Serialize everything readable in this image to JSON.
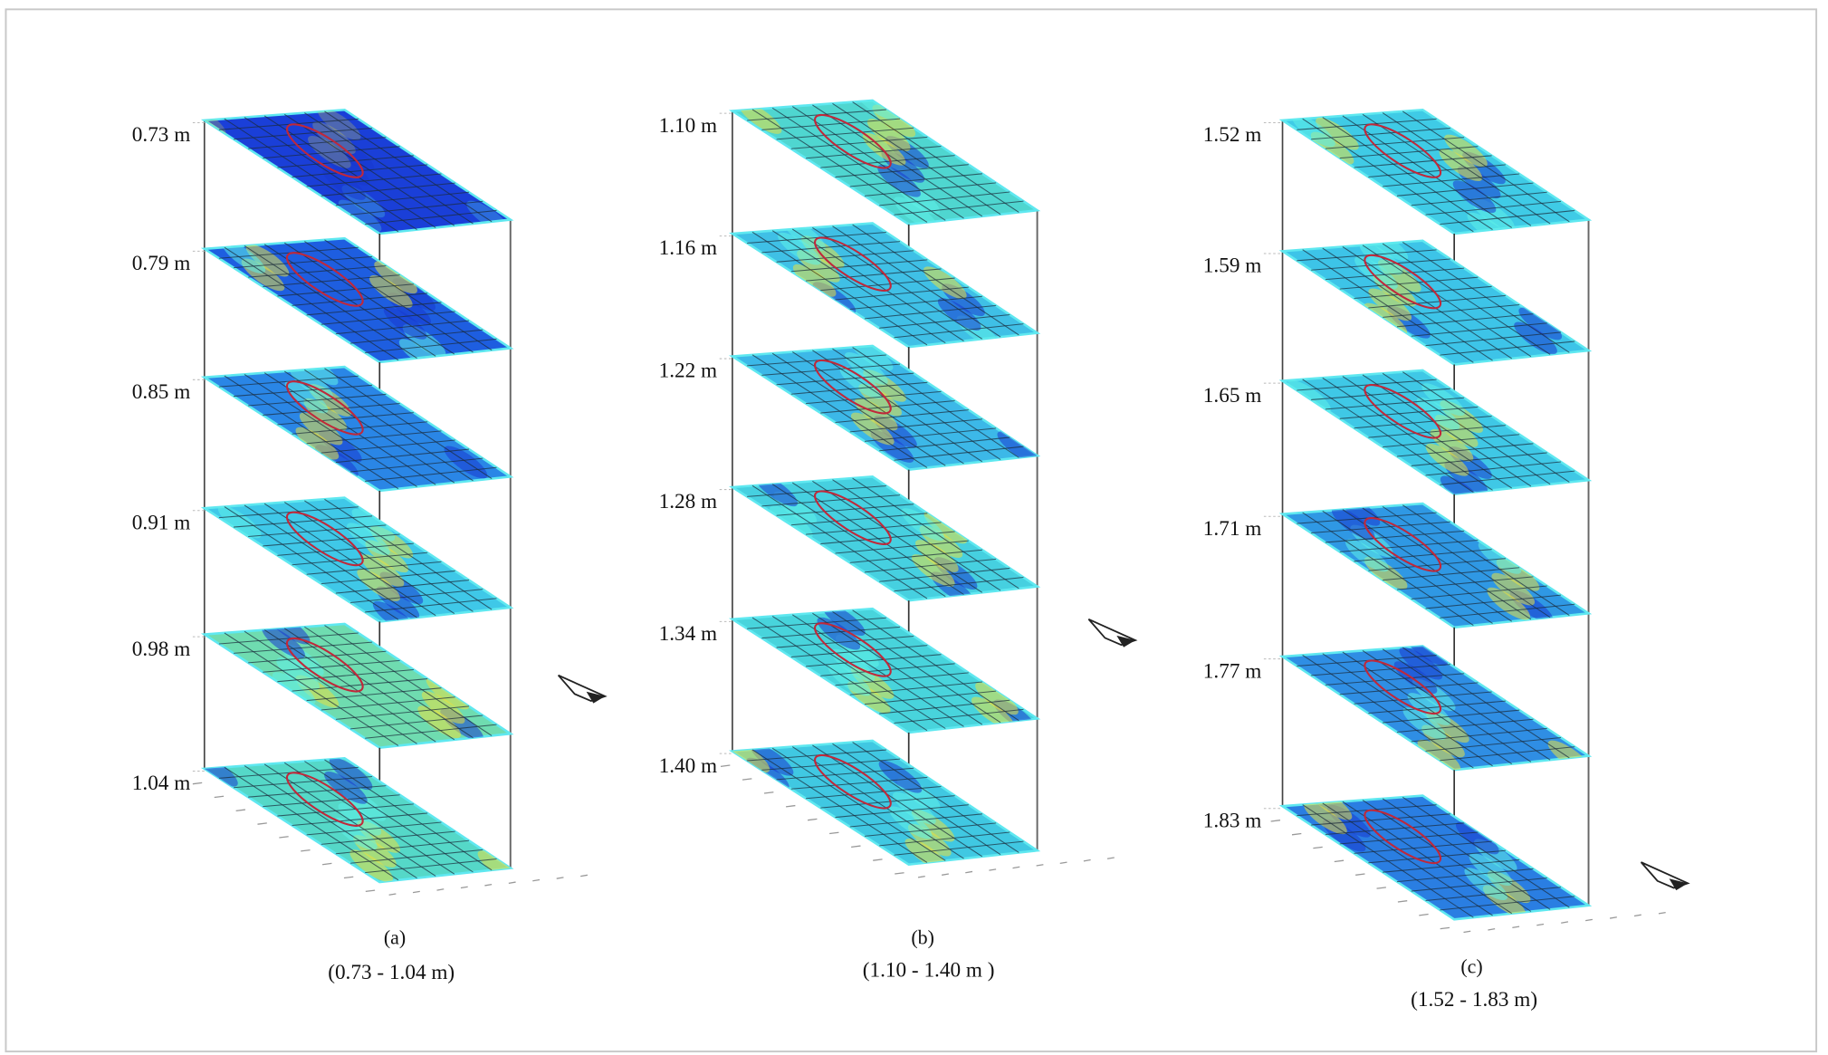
{
  "figure": {
    "panels": [
      {
        "id": "a",
        "caption_letter": "(a)",
        "caption_range": "(0.73 - 1.04 m)",
        "slices": [
          {
            "label": "0.73 m",
            "tone": "#1a3fd8"
          },
          {
            "label": "0.79 m",
            "tone": "#1e5ee0"
          },
          {
            "label": "0.85 m",
            "tone": "#2a86e6"
          },
          {
            "label": "0.91 m",
            "tone": "#3fc8e8"
          },
          {
            "label": "0.98 m",
            "tone": "#6fdcb0"
          },
          {
            "label": "1.04 m",
            "tone": "#55d8c8"
          }
        ]
      },
      {
        "id": "b",
        "caption_letter": "(b)",
        "caption_range": "(1.10 - 1.40 m )",
        "slices": [
          {
            "label": "1.10 m",
            "tone": "#4fd6d0"
          },
          {
            "label": "1.16 m",
            "tone": "#3fc0e6"
          },
          {
            "label": "1.22 m",
            "tone": "#3cb8e8"
          },
          {
            "label": "1.28 m",
            "tone": "#46d0e0"
          },
          {
            "label": "1.34 m",
            "tone": "#48d4dc"
          },
          {
            "label": "1.40 m",
            "tone": "#40c8e2"
          }
        ]
      },
      {
        "id": "c",
        "caption_letter": "(c)",
        "caption_range": "(1.52 - 1.83 m)",
        "slices": [
          {
            "label": "1.52 m",
            "tone": "#3fcbe6"
          },
          {
            "label": "1.59 m",
            "tone": "#3dc4e8"
          },
          {
            "label": "1.65 m",
            "tone": "#3fc8e6"
          },
          {
            "label": "1.71 m",
            "tone": "#2f98e4"
          },
          {
            "label": "1.77 m",
            "tone": "#2f8ee4"
          },
          {
            "label": "1.83 m",
            "tone": "#2a7ee2"
          }
        ]
      }
    ],
    "colors": {
      "contour": "#c0283a",
      "grid": "#1a2a3a",
      "frame": "#bbbbbb",
      "warm": "#e8e040"
    }
  }
}
